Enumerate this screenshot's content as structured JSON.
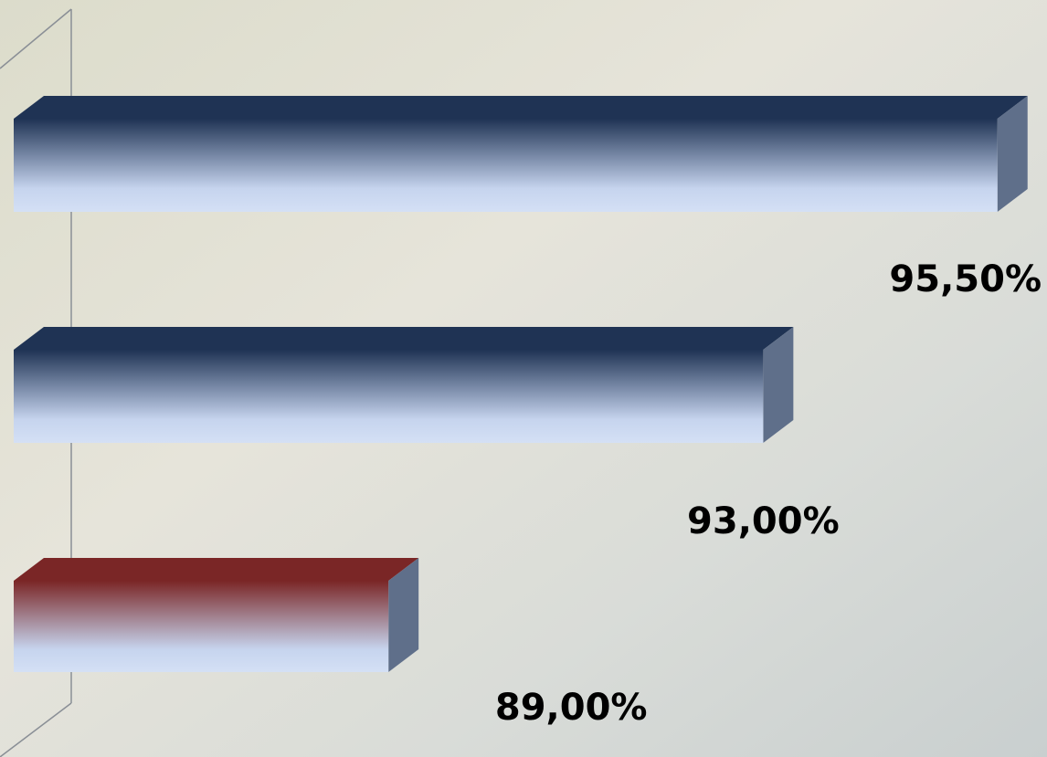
{
  "chart_data": {
    "type": "hbar3d",
    "values": [
      95.5,
      93,
      89
    ],
    "value_labels": [
      "95,50%",
      "93,00%",
      "89,00%"
    ],
    "colors": [
      "#1f3354",
      "#1f3354",
      "#7a2626"
    ],
    "xlim": [
      85,
      96
    ]
  }
}
